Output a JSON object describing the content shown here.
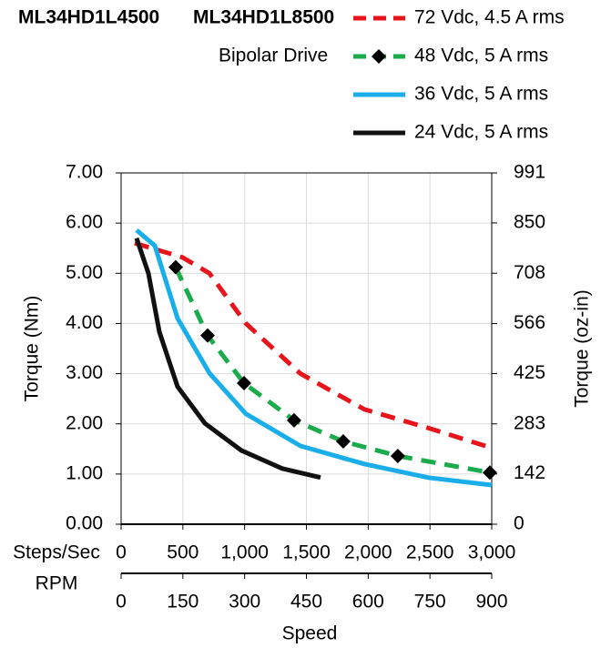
{
  "chart_data": {
    "type": "line",
    "titles": [
      "ML34HD1L4500",
      "ML34HD1L8500"
    ],
    "subtitle": "Bipolar Drive",
    "y_label": "Torque (Nm)",
    "y2_label": "Torque (oz-in)",
    "x_label": "Steps/Sec",
    "x2_label": "RPM",
    "x_title": "Speed",
    "xlim": [
      0,
      3000
    ],
    "xticks": [
      0,
      500,
      {
        "value": 1000,
        "label": "1,000"
      },
      {
        "value": 1500,
        "label": "1,500"
      },
      {
        "value": 2000,
        "label": "2,000"
      },
      {
        "value": 2500,
        "label": "2,500"
      },
      {
        "value": 3000,
        "label": "3,000"
      }
    ],
    "x2lim": [
      0,
      900
    ],
    "x2ticks": [
      0,
      150,
      300,
      450,
      600,
      750,
      900
    ],
    "ylim": [
      0,
      7
    ],
    "yticks": [
      {
        "value": 0,
        "label": "0.00"
      },
      {
        "value": 1,
        "label": "1.00"
      },
      {
        "value": 2,
        "label": "2.00"
      },
      {
        "value": 3,
        "label": "3.00"
      },
      {
        "value": 4,
        "label": "4.00"
      },
      {
        "value": 5,
        "label": "5.00"
      },
      {
        "value": 6,
        "label": "6.00"
      },
      {
        "value": 7,
        "label": "7.00"
      }
    ],
    "y2lim": [
      0,
      991
    ],
    "y2ticks": [
      0,
      142,
      283,
      425,
      566,
      708,
      850,
      991
    ],
    "grid": true,
    "series": [
      {
        "name": "72 Vdc, 4.5 A rms",
        "color": "#e8141c",
        "dash": true,
        "x": [
          110,
          494,
          715,
          1010,
          1452,
          1968,
          2483,
          3000
        ],
        "values": [
          5.6,
          5.32,
          5.0,
          4.0,
          3.0,
          2.29,
          1.92,
          1.52
        ]
      },
      {
        "name": "48 Vdc, 5 A rms",
        "color": "#1aab4b",
        "dash": true,
        "marker": "diamond",
        "x": [
          442,
          700,
          995,
          1400,
          1798,
          2240,
          2985
        ],
        "values": [
          5.12,
          3.76,
          2.81,
          2.07,
          1.65,
          1.36,
          1.03
        ]
      },
      {
        "name": "36 Vdc, 5 A rms",
        "color": "#19aeea",
        "dash": false,
        "x": [
          125,
          273,
          457,
          715,
          1010,
          1452,
          1968,
          2483,
          3000
        ],
        "values": [
          5.86,
          5.55,
          4.1,
          3.01,
          2.2,
          1.56,
          1.2,
          0.93,
          0.78
        ]
      },
      {
        "name": "24 Vdc, 5 A rms",
        "color": "#111111",
        "dash": false,
        "x": [
          125,
          221,
          310,
          457,
          678,
          973,
          1304,
          1614
        ],
        "values": [
          5.7,
          5.0,
          3.83,
          2.74,
          2.01,
          1.47,
          1.11,
          0.93
        ]
      }
    ]
  }
}
